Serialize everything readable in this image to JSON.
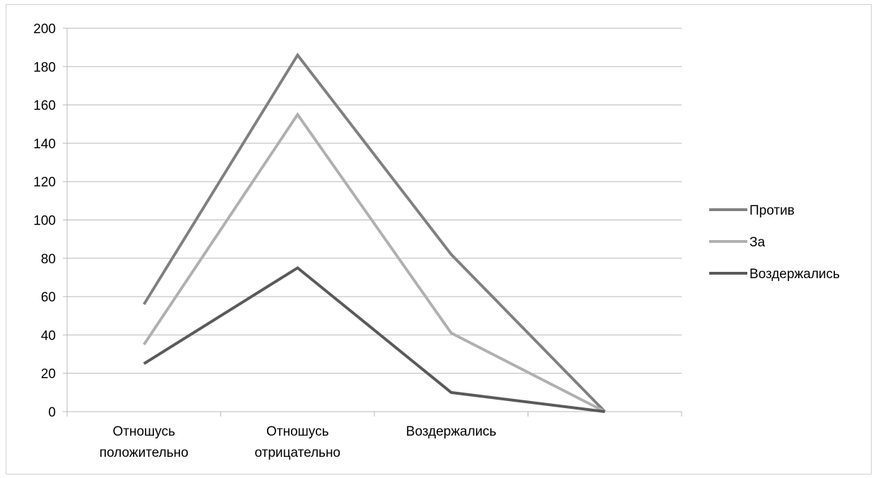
{
  "chart_data": {
    "type": "line",
    "categories": [
      [
        "Отношусь",
        "положительно"
      ],
      [
        "Отношусь",
        "отрицательно"
      ],
      [
        "Воздержались"
      ],
      [
        ""
      ]
    ],
    "series": [
      {
        "name": "Против",
        "values": [
          56,
          186,
          82,
          0
        ],
        "color": "#808080"
      },
      {
        "name": "За",
        "values": [
          35,
          155,
          41,
          0
        ],
        "color": "#b0b0b0"
      },
      {
        "name": "Воздержались",
        "values": [
          25,
          75,
          10,
          0
        ],
        "color": "#5a5a5a"
      }
    ],
    "ylim": [
      0,
      200
    ],
    "ytick_step": 20,
    "grid": true,
    "legend_position": "right",
    "title": "",
    "xlabel": "",
    "ylabel": ""
  }
}
